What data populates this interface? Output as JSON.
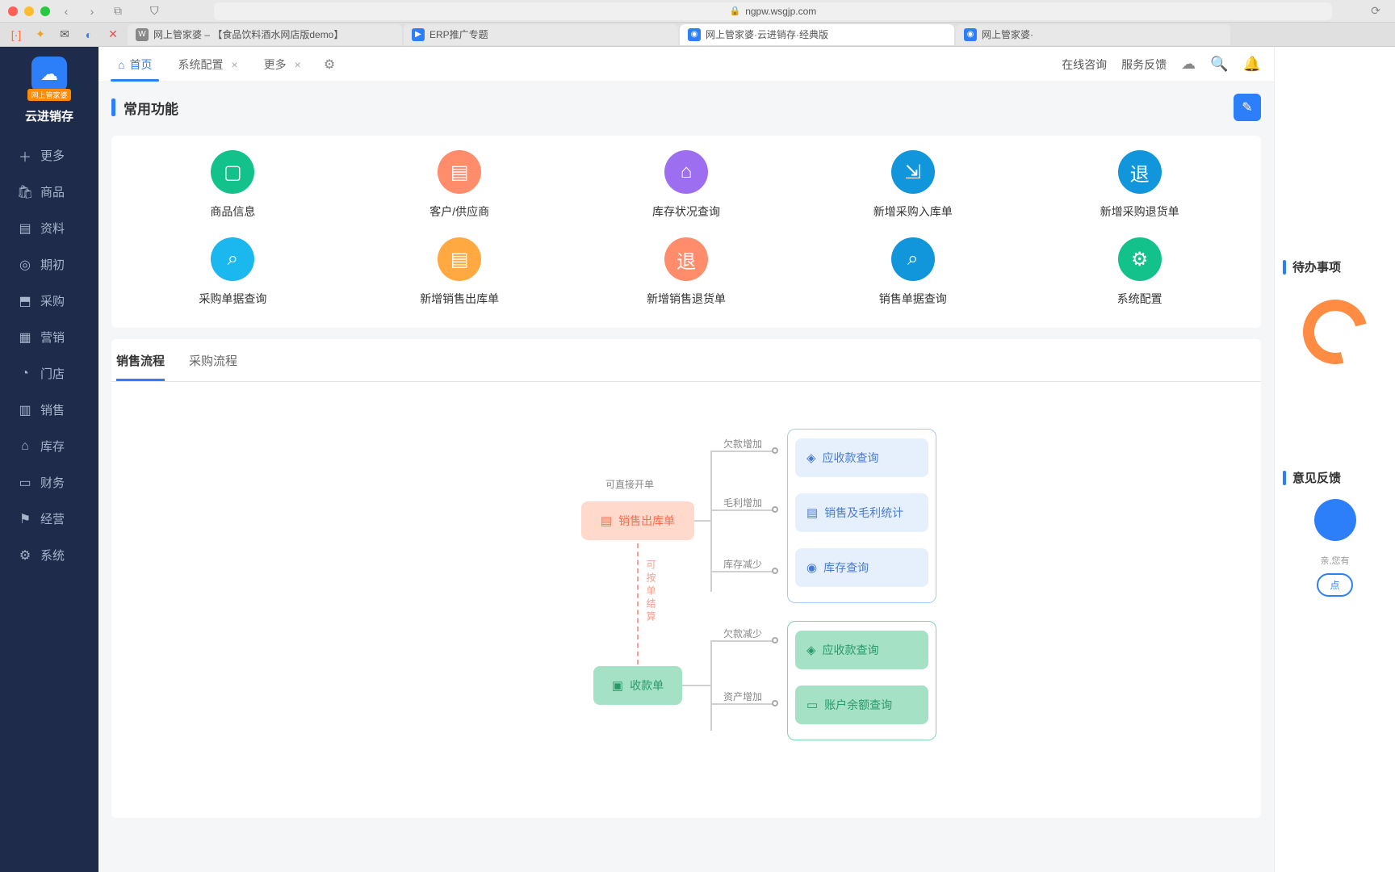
{
  "browser": {
    "url": "ngpw.wsgjp.com",
    "tabs": [
      {
        "label": "网上管家婆 – 【食品饮料酒水网店版demo】",
        "favicon_bg": "#888",
        "favicon_text": "W"
      },
      {
        "label": "ERP推广专题",
        "favicon_bg": "#2d7ff9",
        "favicon_text": "▶"
      },
      {
        "label": "网上管家婆·云进销存·经典版",
        "favicon_bg": "#2d7ff9",
        "favicon_text": "◉"
      },
      {
        "label": "网上管家婆·",
        "favicon_bg": "#2d7ff9",
        "favicon_text": "◉"
      }
    ],
    "ext_icons": [
      {
        "glyph": "[·]",
        "color": "#ff6b35"
      },
      {
        "glyph": "✦",
        "color": "#f0a020"
      },
      {
        "glyph": "✉",
        "color": "#555"
      },
      {
        "glyph": "◐",
        "color": "#2d7ff9"
      },
      {
        "glyph": "✕",
        "color": "#e05050"
      }
    ]
  },
  "sidebar": {
    "badge": "网上管家婆",
    "app_name": "云进销存",
    "items": [
      {
        "icon": "＋",
        "label": "更多"
      },
      {
        "icon": "🛍",
        "label": "商品"
      },
      {
        "icon": "▤",
        "label": "资料"
      },
      {
        "icon": "◎",
        "label": "期初"
      },
      {
        "icon": "⬒",
        "label": "采购"
      },
      {
        "icon": "▦",
        "label": "营销"
      },
      {
        "icon": "◔",
        "label": "门店"
      },
      {
        "icon": "▥",
        "label": "销售"
      },
      {
        "icon": "⌂",
        "label": "库存"
      },
      {
        "icon": "▭",
        "label": "财务"
      },
      {
        "icon": "⚑",
        "label": "经营"
      },
      {
        "icon": "⚙",
        "label": "系统"
      }
    ]
  },
  "top": {
    "tabs": [
      {
        "label": "首页",
        "active": true,
        "icon": "⌂"
      },
      {
        "label": "系统配置",
        "closable": true
      },
      {
        "label": "更多",
        "closable": true
      }
    ],
    "right": {
      "consult": "在线咨询",
      "feedback": "服务反馈"
    }
  },
  "common_funcs": {
    "title": "常用功能",
    "row1": [
      {
        "label": "商品信息",
        "icon": "▢",
        "bg": "#13c28b"
      },
      {
        "label": "客户/供应商",
        "icon": "▤",
        "bg": "#ff8c6b"
      },
      {
        "label": "库存状况查询",
        "icon": "⌂",
        "bg": "#9d6ff0"
      },
      {
        "label": "新增采购入库单",
        "icon": "⇲",
        "bg": "#1296db"
      },
      {
        "label": "新增采购退货单",
        "icon": "退",
        "bg": "#1296db"
      }
    ],
    "row2": [
      {
        "label": "采购单据查询",
        "icon": "⌕",
        "bg": "#1bb8ef"
      },
      {
        "label": "新增销售出库单",
        "icon": "▤",
        "bg": "#ffa940"
      },
      {
        "label": "新增销售退货单",
        "icon": "退",
        "bg": "#ff8c6b"
      },
      {
        "label": "销售单据查询",
        "icon": "⌕",
        "bg": "#1296db"
      },
      {
        "label": "系统配置",
        "icon": "⚙",
        "bg": "#13c28b"
      }
    ]
  },
  "flow": {
    "tabs": [
      {
        "label": "销售流程",
        "active": true
      },
      {
        "label": "采购流程"
      }
    ],
    "hint_direct": "可直接开单",
    "hint_settle": "可按单结算",
    "node_out": "销售出库单",
    "node_receipt": "收款单",
    "labels": {
      "debt_inc": "欠款增加",
      "profit_inc": "毛利增加",
      "stock_dec": "库存减少",
      "debt_dec": "欠款减少",
      "asset_inc": "资产增加"
    },
    "group1": [
      {
        "label": "应收款查询",
        "icon": "◈"
      },
      {
        "label": "销售及毛利统计",
        "icon": "▤"
      },
      {
        "label": "库存查询",
        "icon": "◉"
      }
    ],
    "group2": [
      {
        "label": "应收款查询",
        "icon": "◈"
      },
      {
        "label": "账户余额查询",
        "icon": "▭"
      }
    ],
    "colors": {
      "orange_bg": "#ffd9cc",
      "orange_fg": "#ff6b4a",
      "blue_border": "#a8caf0",
      "blue_bg": "#e6f0fc",
      "blue_fg": "#4a7bd0",
      "green_bg": "#b8e8d4",
      "green_border": "#7dd4ae",
      "green_fg": "#2a9968",
      "green_btn_bg": "#a5e1c5"
    }
  },
  "right_panel": {
    "todo_title": "待办事项",
    "feedback_title": "意见反馈",
    "hint": "亲,您有",
    "btn": "点"
  }
}
